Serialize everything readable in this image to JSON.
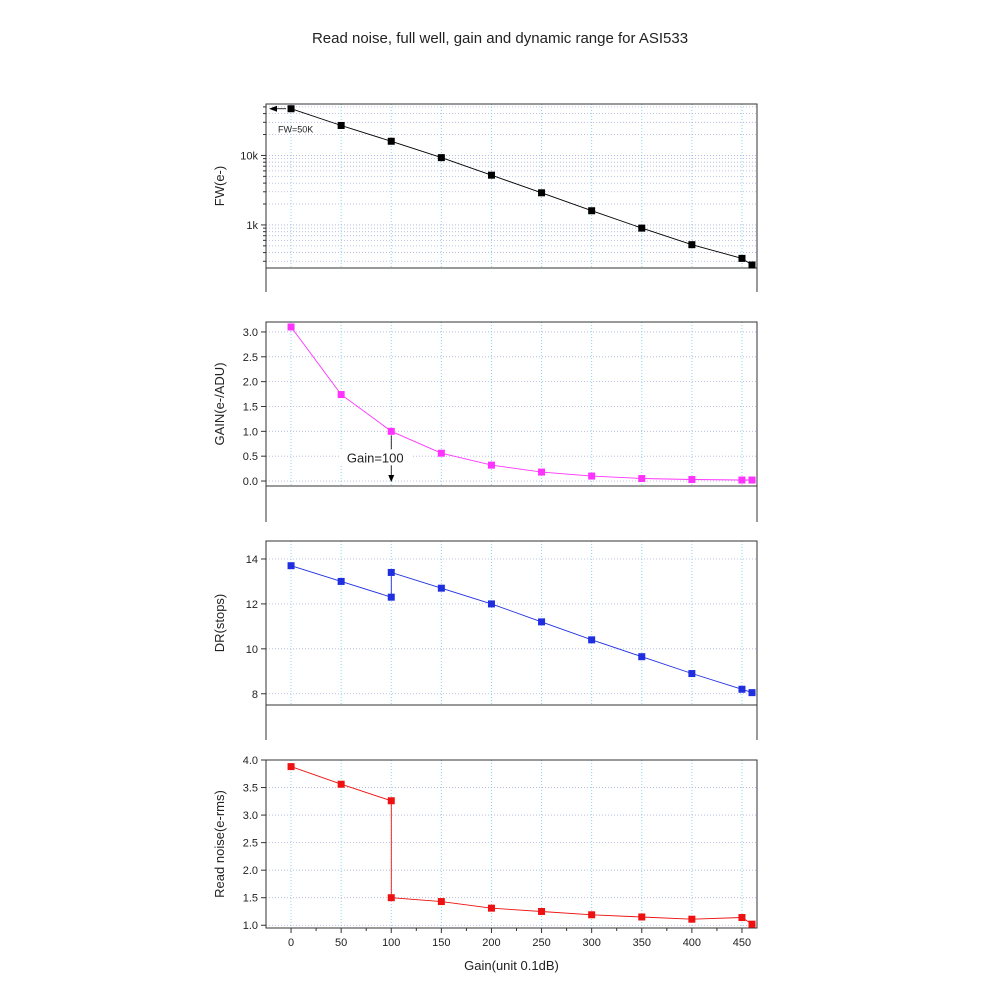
{
  "title": "Read noise, full well, gain and dynamic range for ASI533",
  "chart_data": [
    {
      "type": "line",
      "ylabel": "FW(e-)",
      "yscale": "log",
      "ylim": [
        240,
        55000
      ],
      "yticks": [
        {
          "v": 1000,
          "label": "1k"
        },
        {
          "v": 10000,
          "label": "10k"
        }
      ],
      "color": "#000000",
      "grid": true,
      "x": [
        0,
        50,
        100,
        150,
        200,
        250,
        300,
        350,
        400,
        450,
        460
      ],
      "values": [
        47000,
        27000,
        16000,
        9300,
        5200,
        2900,
        1600,
        900,
        520,
        330,
        265
      ],
      "annotation": {
        "text": "FW=50K",
        "x": 0,
        "y": 47000,
        "arrow": "left"
      }
    },
    {
      "type": "line",
      "ylabel": "GAIN(e-/ADU)",
      "ylim": [
        -0.1,
        3.2
      ],
      "yticks": [
        {
          "v": 0,
          "label": "0.0"
        },
        {
          "v": 0.5,
          "label": "0.5"
        },
        {
          "v": 1,
          "label": "1.0"
        },
        {
          "v": 1.5,
          "label": "1.5"
        },
        {
          "v": 2,
          "label": "2.0"
        },
        {
          "v": 2.5,
          "label": "2.5"
        },
        {
          "v": 3,
          "label": "3.0"
        }
      ],
      "color": "#ff33ff",
      "grid": true,
      "x": [
        0,
        50,
        100,
        150,
        200,
        250,
        300,
        350,
        400,
        450,
        460
      ],
      "values": [
        3.1,
        1.74,
        1.0,
        0.56,
        0.32,
        0.18,
        0.1,
        0.05,
        0.03,
        0.02,
        0.02
      ],
      "annotation": {
        "text": "Gain=100",
        "x": 100,
        "y": 1.0,
        "arrow": "down"
      }
    },
    {
      "type": "line",
      "ylabel": "DR(stops)",
      "ylim": [
        7.5,
        14.8
      ],
      "yticks": [
        {
          "v": 8,
          "label": "8"
        },
        {
          "v": 10,
          "label": "10"
        },
        {
          "v": 12,
          "label": "12"
        },
        {
          "v": 14,
          "label": "14"
        }
      ],
      "color": "#1f2fe0",
      "grid": true,
      "x": [
        0,
        50,
        100,
        100,
        150,
        200,
        250,
        300,
        350,
        400,
        450,
        460
      ],
      "values": [
        13.7,
        13.0,
        12.3,
        13.4,
        12.7,
        12.0,
        11.2,
        10.4,
        9.65,
        8.9,
        8.2,
        8.05
      ]
    },
    {
      "type": "line",
      "ylabel": "Read noise(e-rms)",
      "xlabel": "Gain(unit 0.1dB)",
      "ylim": [
        0.95,
        4.0
      ],
      "yticks": [
        {
          "v": 1.0,
          "label": "1.0"
        },
        {
          "v": 1.5,
          "label": "1.5"
        },
        {
          "v": 2.0,
          "label": "2.0"
        },
        {
          "v": 2.5,
          "label": "2.5"
        },
        {
          "v": 3.0,
          "label": "3.0"
        },
        {
          "v": 3.5,
          "label": "3.5"
        },
        {
          "v": 4.0,
          "label": "4.0"
        }
      ],
      "color": "#ee1111",
      "grid": true,
      "x": [
        0,
        50,
        100,
        100,
        150,
        200,
        250,
        300,
        350,
        400,
        450,
        460
      ],
      "values": [
        3.88,
        3.56,
        3.26,
        1.5,
        1.43,
        1.31,
        1.25,
        1.19,
        1.15,
        1.11,
        1.14,
        1.02
      ]
    }
  ],
  "xaxis": {
    "xlim": [
      -25,
      465
    ],
    "ticks": [
      0,
      50,
      100,
      150,
      200,
      250,
      300,
      350,
      400,
      450
    ],
    "tick_labels": [
      "0",
      "50",
      "100",
      "150",
      "200",
      "250",
      "300",
      "350",
      "400",
      "450"
    ]
  }
}
